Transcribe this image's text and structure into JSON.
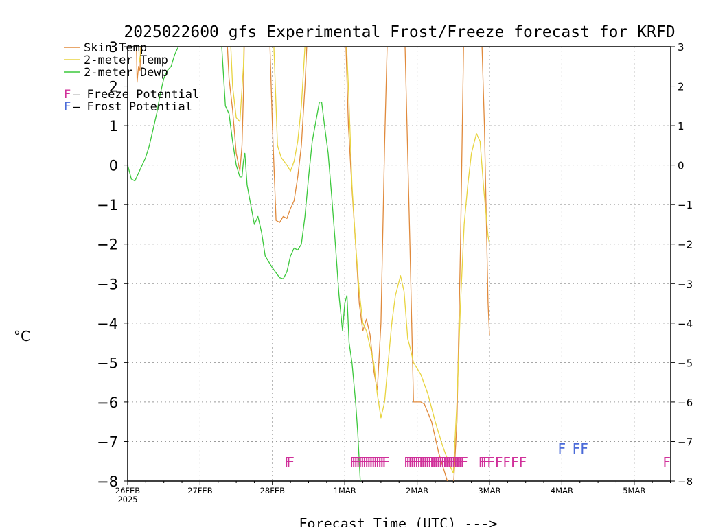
{
  "chart_data": {
    "type": "line",
    "title": "2025022600 gfs Experimental Frost/Freeze forecast for KRFD",
    "xlabel": "Forecast Time (UTC) --->",
    "ylabel": "°C",
    "ylim": [
      -8,
      3
    ],
    "yticks": [
      "3",
      "2",
      "1",
      "0",
      "−1",
      "−2",
      "−3",
      "−4",
      "−5",
      "−6",
      "−7",
      "−8"
    ],
    "xticks": [
      "26FEB",
      "27FEB",
      "28FEB",
      "1MAR",
      "2MAR",
      "3MAR",
      "4MAR",
      "5MAR"
    ],
    "xtick_sub": "2025",
    "grid": true,
    "legend_position": "top-left",
    "series": [
      {
        "name": "Skin Temp",
        "color": "#e08a3c",
        "points": [
          [
            0.1,
            5.0
          ],
          [
            0.12,
            3.2
          ],
          [
            0.13,
            2.1
          ],
          [
            0.15,
            2.5
          ],
          [
            0.17,
            2.4
          ],
          [
            0.19,
            3.5
          ],
          [
            1.35,
            4.0
          ],
          [
            1.4,
            2.2
          ],
          [
            1.45,
            1.4
          ],
          [
            1.5,
            0.3
          ],
          [
            1.55,
            -0.15
          ],
          [
            1.58,
            0.5
          ],
          [
            1.6,
            1.8
          ],
          [
            1.62,
            4.0
          ],
          [
            1.95,
            4.0
          ],
          [
            2.0,
            1.0
          ],
          [
            2.05,
            -1.4
          ],
          [
            2.1,
            -1.45
          ],
          [
            2.15,
            -1.3
          ],
          [
            2.2,
            -1.35
          ],
          [
            2.25,
            -1.1
          ],
          [
            2.3,
            -0.9
          ],
          [
            2.35,
            -0.3
          ],
          [
            2.4,
            0.5
          ],
          [
            2.45,
            2.0
          ],
          [
            2.5,
            4.0
          ],
          [
            3.0,
            4.0
          ],
          [
            3.05,
            1.0
          ],
          [
            3.1,
            -0.6
          ],
          [
            3.15,
            -2.0
          ],
          [
            3.2,
            -3.5
          ],
          [
            3.25,
            -4.2
          ],
          [
            3.3,
            -3.9
          ],
          [
            3.35,
            -4.3
          ],
          [
            3.4,
            -5.2
          ],
          [
            3.45,
            -5.7
          ],
          [
            3.5,
            -4.0
          ],
          [
            3.55,
            0.5
          ],
          [
            3.6,
            4.0
          ],
          [
            3.82,
            4.0
          ],
          [
            3.9,
            -2.0
          ],
          [
            3.95,
            -6.0
          ],
          [
            4.05,
            -6.0
          ],
          [
            4.1,
            -6.05
          ],
          [
            4.2,
            -6.5
          ],
          [
            4.3,
            -7.3
          ],
          [
            4.4,
            -7.9
          ],
          [
            4.45,
            -8.2
          ],
          [
            4.5,
            -8.2
          ],
          [
            4.55,
            -6.5
          ],
          [
            4.6,
            -2.0
          ],
          [
            4.65,
            4.0
          ],
          [
            4.88,
            4.0
          ],
          [
            4.93,
            1.0
          ],
          [
            4.98,
            -3.5
          ],
          [
            5.0,
            -4.3
          ]
        ]
      },
      {
        "name": "2-meter Temp",
        "color": "#e8d440",
        "points": [
          [
            0.14,
            4.0
          ],
          [
            0.16,
            2.6
          ],
          [
            0.18,
            2.8
          ],
          [
            0.2,
            4.0
          ],
          [
            1.4,
            4.0
          ],
          [
            1.45,
            2.0
          ],
          [
            1.5,
            1.2
          ],
          [
            1.55,
            1.1
          ],
          [
            1.6,
            2.5
          ],
          [
            1.62,
            4.0
          ],
          [
            2.0,
            4.0
          ],
          [
            2.03,
            2.5
          ],
          [
            2.07,
            0.5
          ],
          [
            2.12,
            0.2
          ],
          [
            2.2,
            0.0
          ],
          [
            2.25,
            -0.15
          ],
          [
            2.3,
            0.1
          ],
          [
            2.35,
            0.6
          ],
          [
            2.4,
            1.5
          ],
          [
            2.45,
            3.0
          ],
          [
            2.48,
            4.0
          ],
          [
            3.0,
            4.0
          ],
          [
            3.05,
            2.0
          ],
          [
            3.1,
            -0.5
          ],
          [
            3.15,
            -2.0
          ],
          [
            3.2,
            -3.2
          ],
          [
            3.25,
            -4.0
          ],
          [
            3.3,
            -4.2
          ],
          [
            3.4,
            -5.0
          ],
          [
            3.45,
            -5.8
          ],
          [
            3.5,
            -6.4
          ],
          [
            3.55,
            -6.0
          ],
          [
            3.6,
            -5.0
          ],
          [
            3.65,
            -4.0
          ],
          [
            3.7,
            -3.3
          ],
          [
            3.77,
            -2.8
          ],
          [
            3.82,
            -3.2
          ],
          [
            3.87,
            -4.4
          ],
          [
            3.9,
            -4.6
          ],
          [
            3.95,
            -5.0
          ],
          [
            4.05,
            -5.3
          ],
          [
            4.15,
            -5.8
          ],
          [
            4.25,
            -6.5
          ],
          [
            4.35,
            -7.1
          ],
          [
            4.45,
            -7.6
          ],
          [
            4.5,
            -7.8
          ],
          [
            4.55,
            -6.0
          ],
          [
            4.6,
            -3.5
          ],
          [
            4.65,
            -1.5
          ],
          [
            4.7,
            -0.5
          ],
          [
            4.75,
            0.3
          ],
          [
            4.82,
            0.8
          ],
          [
            4.87,
            0.6
          ],
          [
            4.92,
            -0.6
          ],
          [
            4.98,
            -1.8
          ],
          [
            5.0,
            -2.0
          ]
        ]
      },
      {
        "name": "2-meter Dewp",
        "color": "#3cc83c",
        "points": [
          [
            0.0,
            0.0
          ],
          [
            0.05,
            -0.35
          ],
          [
            0.1,
            -0.4
          ],
          [
            0.15,
            -0.2
          ],
          [
            0.2,
            0.0
          ],
          [
            0.25,
            0.2
          ],
          [
            0.3,
            0.5
          ],
          [
            0.35,
            0.9
          ],
          [
            0.4,
            1.3
          ],
          [
            0.45,
            1.8
          ],
          [
            0.5,
            2.2
          ],
          [
            0.55,
            2.4
          ],
          [
            0.6,
            2.5
          ],
          [
            0.65,
            2.8
          ],
          [
            0.7,
            3.0
          ],
          [
            0.72,
            4.0
          ],
          [
            1.28,
            4.0
          ],
          [
            1.3,
            3.0
          ],
          [
            1.35,
            1.5
          ],
          [
            1.4,
            1.3
          ],
          [
            1.45,
            0.6
          ],
          [
            1.5,
            0.0
          ],
          [
            1.55,
            -0.3
          ],
          [
            1.58,
            -0.3
          ],
          [
            1.6,
            0.1
          ],
          [
            1.62,
            0.3
          ],
          [
            1.65,
            -0.5
          ],
          [
            1.7,
            -1.0
          ],
          [
            1.75,
            -1.5
          ],
          [
            1.8,
            -1.3
          ],
          [
            1.85,
            -1.7
          ],
          [
            1.9,
            -2.3
          ],
          [
            2.0,
            -2.6
          ],
          [
            2.1,
            -2.85
          ],
          [
            2.15,
            -2.88
          ],
          [
            2.2,
            -2.7
          ],
          [
            2.25,
            -2.3
          ],
          [
            2.3,
            -2.1
          ],
          [
            2.35,
            -2.15
          ],
          [
            2.4,
            -2.0
          ],
          [
            2.45,
            -1.3
          ],
          [
            2.5,
            -0.3
          ],
          [
            2.55,
            0.6
          ],
          [
            2.6,
            1.1
          ],
          [
            2.65,
            1.6
          ],
          [
            2.68,
            1.6
          ],
          [
            2.72,
            1.0
          ],
          [
            2.77,
            0.3
          ],
          [
            2.82,
            -0.8
          ],
          [
            2.87,
            -2.0
          ],
          [
            2.92,
            -3.3
          ],
          [
            2.97,
            -4.2
          ],
          [
            3.0,
            -3.5
          ],
          [
            3.03,
            -3.3
          ],
          [
            3.06,
            -4.5
          ],
          [
            3.1,
            -5.0
          ],
          [
            3.15,
            -6.0
          ],
          [
            3.18,
            -6.8
          ],
          [
            3.22,
            -8.2
          ]
        ]
      }
    ],
    "annotations": {
      "freeze_label": "F",
      "frost_label": "F",
      "freeze_color": "#d0309a",
      "frost_color": "#4a6ad8",
      "freeze_x": [
        2.22,
        2.25,
        3.12,
        3.15,
        3.18,
        3.21,
        3.24,
        3.27,
        3.3,
        3.33,
        3.36,
        3.39,
        3.42,
        3.45,
        3.48,
        3.51,
        3.54,
        3.57,
        3.87,
        3.9,
        3.93,
        3.96,
        3.99,
        4.02,
        4.05,
        4.08,
        4.11,
        4.14,
        4.17,
        4.2,
        4.23,
        4.26,
        4.29,
        4.32,
        4.35,
        4.38,
        4.41,
        4.44,
        4.47,
        4.5,
        4.53,
        4.56,
        4.59,
        4.62,
        4.65,
        4.9,
        4.93,
        4.96,
        5.02,
        5.13,
        5.24,
        5.35,
        5.46,
        7.45
      ],
      "freeze_y": -7.5,
      "frost_x": [
        6.0,
        6.2,
        6.31
      ],
      "frost_y": -7.15
    },
    "legend": [
      {
        "label": "Skin Temp",
        "color": "#e08a3c"
      },
      {
        "label": "2-meter Temp",
        "color": "#e8d440"
      },
      {
        "label": "2-meter Dewp",
        "color": "#3cc83c"
      }
    ],
    "key": [
      {
        "prefix": "F",
        "text": " – Freeze Potential",
        "color": "#d0309a"
      },
      {
        "prefix": "F",
        "text": " – Frost Potential",
        "color": "#4a6ad8"
      }
    ]
  }
}
